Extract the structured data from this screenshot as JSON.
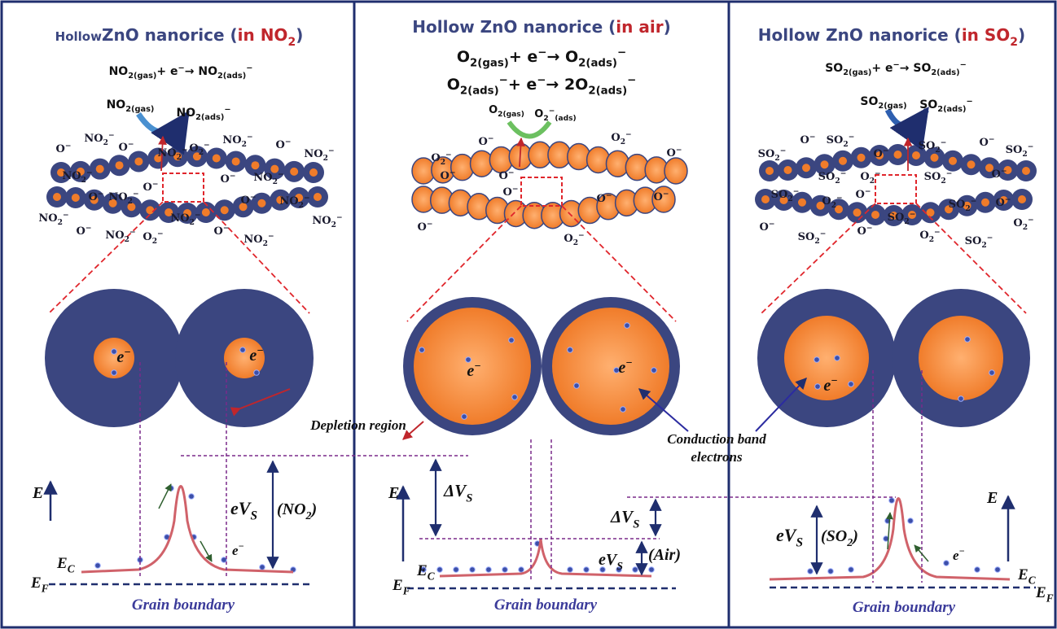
{
  "panels": [
    {
      "title": [
        "Hollow",
        "ZnO nanorice (",
        "in NO",
        "2",
        ")"
      ],
      "equations": [
        [
          "NO",
          "2(gas)",
          "+ e",
          "−",
          "→ NO",
          "2(ads)",
          "−"
        ]
      ],
      "reactant": [
        "NO",
        "2(gas)"
      ],
      "product": [
        "NO",
        "2(ads)",
        "−"
      ],
      "ions": [
        [
          "O",
          "−"
        ],
        [
          "NO",
          "2",
          "−"
        ],
        [
          "O",
          "−"
        ],
        [
          "NO",
          "2",
          "−"
        ],
        [
          "O",
          "2",
          "−"
        ],
        [
          "NO",
          "2",
          "−"
        ],
        [
          "O",
          "−"
        ],
        [
          "NO",
          "2",
          "−"
        ],
        [
          "NO",
          "2",
          "−"
        ],
        [
          "O",
          "−"
        ],
        [
          "O",
          "−"
        ],
        [
          "NO",
          "2",
          "−"
        ],
        [
          "O",
          "−"
        ],
        [
          "NO",
          "2",
          "−"
        ],
        [
          "NO",
          "2",
          "−"
        ],
        [
          "O",
          "−"
        ],
        [
          "NO",
          "2",
          "−"
        ],
        [
          "NO",
          "2",
          "−"
        ],
        [
          "O",
          "−"
        ],
        [
          "NO",
          "2",
          "−"
        ],
        [
          "O",
          "2",
          "−"
        ],
        [
          "O",
          "−"
        ],
        [
          "NO",
          "2",
          "−"
        ],
        [
          "NO",
          "2",
          "−"
        ]
      ],
      "core_labels": [
        [
          "e",
          "−"
        ],
        [
          "e",
          "−"
        ]
      ],
      "energy": {
        "axis": "E",
        "ec": [
          "E",
          "C"
        ],
        "ef": [
          "E",
          "F"
        ],
        "barrier": [
          "eV",
          "S"
        ],
        "gas": [
          "(NO",
          "2",
          ")"
        ],
        "electron": [
          "e",
          "−"
        ],
        "caption": "Grain boundary"
      }
    },
    {
      "title": [
        "Hollow ZnO nanorice (",
        "in air",
        ")"
      ],
      "equations": [
        [
          "O",
          "2(gas)",
          "+ e",
          "−",
          "→ O",
          "2(ads)",
          "−"
        ],
        [
          "O",
          "2(ads)",
          "−",
          "+ e",
          "−",
          "→ 2O",
          "2(ads)",
          "−"
        ]
      ],
      "reactant": [
        "O",
        "2(gas)"
      ],
      "product": [
        "O",
        "2",
        "−",
        "(ads)"
      ],
      "ions": [
        [
          "O",
          "−"
        ],
        [
          "O",
          "2",
          "−"
        ],
        [
          "O",
          "−"
        ],
        [
          "O",
          "2",
          "−"
        ],
        [
          "O",
          "−"
        ],
        [
          "O",
          "−"
        ],
        [
          "O",
          "−"
        ],
        [
          "O",
          "−"
        ],
        [
          "O",
          "−"
        ],
        [
          "O",
          "−"
        ],
        [
          "O",
          "2",
          "−"
        ]
      ],
      "core_labels": [
        [
          "e",
          "−"
        ],
        [
          "e",
          "−"
        ]
      ],
      "energy": {
        "axis": "E",
        "ec": [
          "E",
          "C"
        ],
        "ef": [
          "E",
          "F"
        ],
        "delta_left": [
          "ΔV",
          "S"
        ],
        "delta_right": [
          "ΔV",
          "S"
        ],
        "barrier": [
          "eV",
          "S"
        ],
        "gas": "(Air)",
        "caption": "Grain boundary"
      }
    },
    {
      "title": [
        "Hollow ZnO nanorice (",
        "in SO",
        "2",
        ")"
      ],
      "equations": [
        [
          "SO",
          "2(gas)",
          "+ e",
          "−",
          "→ SO",
          "2(ads)",
          "−"
        ]
      ],
      "reactant": [
        "SO",
        "2(gas)"
      ],
      "product": [
        "SO",
        "2(ads)",
        "−"
      ],
      "ions": [
        [
          "SO",
          "2",
          "−"
        ],
        [
          "O",
          "−"
        ],
        [
          "SO",
          "2",
          "−"
        ],
        [
          "O",
          "−"
        ],
        [
          "SO",
          "2",
          "−"
        ],
        [
          "O",
          "−"
        ],
        [
          "SO",
          "2",
          "−"
        ],
        [
          "SO",
          "2",
          "−"
        ],
        [
          "O",
          "2",
          "−"
        ],
        [
          "SO",
          "2",
          "−"
        ],
        [
          "O",
          "−"
        ],
        [
          "SO",
          "2",
          "−"
        ],
        [
          "O",
          "2",
          "−"
        ],
        [
          "O",
          "−"
        ],
        [
          "SO",
          "2",
          "−"
        ],
        [
          "SO",
          "2",
          "−"
        ],
        [
          "O",
          "−"
        ],
        [
          "O",
          "−"
        ],
        [
          "SO",
          "2",
          "−"
        ],
        [
          "O",
          "−"
        ],
        [
          "O",
          "2",
          "−"
        ],
        [
          "SO",
          "2",
          "−"
        ],
        [
          "O",
          "2",
          "−"
        ]
      ],
      "core_labels": [
        [
          "e",
          "−"
        ]
      ],
      "energy": {
        "axis": "E",
        "ec": [
          "E",
          "C"
        ],
        "ef": [
          "E",
          "F"
        ],
        "barrier": [
          "eV",
          "S"
        ],
        "gas": [
          "(SO",
          "2",
          ")"
        ],
        "electron": [
          "e",
          "−"
        ],
        "caption": "Grain boundary"
      }
    }
  ],
  "annotations": {
    "depletion": "Depletion region",
    "conduction": [
      "Conduction band",
      "electrons"
    ]
  }
}
